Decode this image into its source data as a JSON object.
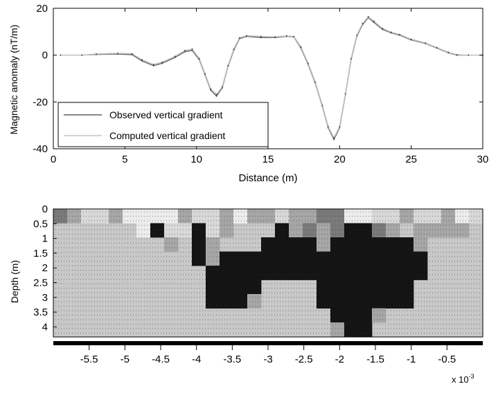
{
  "chart_data": [
    {
      "type": "line",
      "xlabel": "Distance (m)",
      "ylabel": "Magnetic anomaly (nT/m)",
      "xlim": [
        0,
        30
      ],
      "ylim": [
        -40,
        20
      ],
      "xticks": [
        0,
        5,
        10,
        15,
        20,
        25,
        30
      ],
      "yticks": [
        20,
        0,
        -20,
        -40
      ],
      "grid": false,
      "legend_position": "bottom-left",
      "series": [
        {
          "name": "Observed vertical gradient",
          "color": "#606060",
          "points": [
            [
              0.5,
              0
            ],
            [
              2,
              0
            ],
            [
              3,
              0.3
            ],
            [
              4.5,
              0.5
            ],
            [
              5.5,
              0.2
            ],
            [
              6.2,
              -2.5
            ],
            [
              7,
              -4.5
            ],
            [
              7.6,
              -3.5
            ],
            [
              8.5,
              -1
            ],
            [
              9.2,
              1.5
            ],
            [
              9.7,
              2
            ],
            [
              10.2,
              -2
            ],
            [
              10.6,
              -8.5
            ],
            [
              11,
              -15
            ],
            [
              11.4,
              -17.5
            ],
            [
              11.8,
              -14
            ],
            [
              12.2,
              -5
            ],
            [
              12.6,
              2
            ],
            [
              13,
              7
            ],
            [
              13.5,
              8
            ],
            [
              14.5,
              7.5
            ],
            [
              15.5,
              7.5
            ],
            [
              16.3,
              8
            ],
            [
              16.8,
              7.8
            ],
            [
              17.3,
              3
            ],
            [
              17.8,
              -4
            ],
            [
              18.3,
              -12
            ],
            [
              18.8,
              -22
            ],
            [
              19.2,
              -31
            ],
            [
              19.6,
              -36
            ],
            [
              20,
              -31
            ],
            [
              20.4,
              -17
            ],
            [
              20.8,
              -2
            ],
            [
              21.2,
              8
            ],
            [
              21.6,
              13
            ],
            [
              22,
              16
            ],
            [
              22.4,
              14
            ],
            [
              23,
              11
            ],
            [
              23.6,
              9.5
            ],
            [
              24.2,
              8.5
            ],
            [
              25,
              6.5
            ],
            [
              26,
              5
            ],
            [
              26.8,
              3
            ],
            [
              27.6,
              1
            ],
            [
              28.2,
              0
            ],
            [
              29,
              0
            ],
            [
              30,
              0
            ]
          ]
        },
        {
          "name": "Computed vertical gradient",
          "color": "#c4c4c4",
          "points": [
            [
              0.5,
              0
            ],
            [
              2,
              0
            ],
            [
              3,
              0.5
            ],
            [
              4.5,
              0.8
            ],
            [
              5.5,
              0.6
            ],
            [
              6.2,
              -2
            ],
            [
              7,
              -4
            ],
            [
              7.6,
              -3
            ],
            [
              8.5,
              -0.5
            ],
            [
              9.2,
              2
            ],
            [
              9.7,
              2.6
            ],
            [
              10.2,
              -1.5
            ],
            [
              10.6,
              -8
            ],
            [
              11,
              -14.5
            ],
            [
              11.4,
              -16.8
            ],
            [
              11.8,
              -13.5
            ],
            [
              12.2,
              -4.5
            ],
            [
              12.6,
              2.5
            ],
            [
              13,
              7.4
            ],
            [
              13.5,
              8.3
            ],
            [
              14.5,
              8
            ],
            [
              15.5,
              7.8
            ],
            [
              16.3,
              8.2
            ],
            [
              16.8,
              8
            ],
            [
              17.3,
              3.5
            ],
            [
              17.8,
              -3.5
            ],
            [
              18.3,
              -11.5
            ],
            [
              18.8,
              -21.5
            ],
            [
              19.2,
              -30.5
            ],
            [
              19.6,
              -35.3
            ],
            [
              20,
              -30.5
            ],
            [
              20.4,
              -16.5
            ],
            [
              20.8,
              -1.5
            ],
            [
              21.2,
              8.5
            ],
            [
              21.6,
              13.5
            ],
            [
              22,
              16.4
            ],
            [
              22.4,
              14.5
            ],
            [
              23,
              11.4
            ],
            [
              23.6,
              9.8
            ],
            [
              24.2,
              8.8
            ],
            [
              25,
              6.8
            ],
            [
              26,
              5.2
            ],
            [
              26.8,
              3.2
            ],
            [
              27.6,
              1.2
            ],
            [
              28.2,
              0.2
            ],
            [
              29,
              0
            ],
            [
              30,
              0
            ]
          ]
        }
      ]
    },
    {
      "type": "heatmap",
      "ylabel": "Depth (m)",
      "yticks": [
        "0",
        "0.5",
        "1",
        "1.5",
        "2",
        "2.5",
        "3",
        "3.5",
        "4"
      ],
      "colorbar_ticks": [
        "-5.5",
        "-5",
        "-4.5",
        "-4",
        "-3.5",
        "-3",
        "-2.5",
        "-2",
        "-1.5",
        "-1",
        "-0.5"
      ],
      "colorbar_range": [
        -6,
        0
      ],
      "colorbar_scale_label": "x 10",
      "colorbar_scale_exponent": "-3",
      "grid": {
        "rows": 9,
        "cols": 31,
        "background": 0,
        "palette": [
          "#c8c8c8",
          "#141414",
          "#7a7a7a",
          "#a6a6a6",
          "#ececec",
          "#d8d8d8"
        ],
        "cells": [
          [
            0,
            0,
            2
          ],
          [
            0,
            1,
            3
          ],
          [
            0,
            2,
            5
          ],
          [
            0,
            3,
            5
          ],
          [
            0,
            4,
            3
          ],
          [
            0,
            5,
            4
          ],
          [
            0,
            6,
            4
          ],
          [
            0,
            7,
            4
          ],
          [
            0,
            8,
            4
          ],
          [
            0,
            9,
            3
          ],
          [
            0,
            10,
            5
          ],
          [
            0,
            11,
            5
          ],
          [
            0,
            12,
            3
          ],
          [
            0,
            13,
            4
          ],
          [
            0,
            14,
            3
          ],
          [
            0,
            15,
            3
          ],
          [
            0,
            16,
            5
          ],
          [
            0,
            17,
            3
          ],
          [
            0,
            18,
            3
          ],
          [
            0,
            19,
            2
          ],
          [
            0,
            20,
            2
          ],
          [
            0,
            21,
            4
          ],
          [
            0,
            22,
            4
          ],
          [
            0,
            23,
            5
          ],
          [
            0,
            24,
            5
          ],
          [
            0,
            25,
            3
          ],
          [
            0,
            26,
            5
          ],
          [
            0,
            27,
            5
          ],
          [
            0,
            28,
            3
          ],
          [
            0,
            29,
            4
          ],
          [
            0,
            30,
            5
          ],
          [
            1,
            6,
            4
          ],
          [
            1,
            7,
            1
          ],
          [
            1,
            8,
            5
          ],
          [
            1,
            9,
            5
          ],
          [
            1,
            10,
            1
          ],
          [
            1,
            11,
            5
          ],
          [
            1,
            12,
            3
          ],
          [
            1,
            16,
            1
          ],
          [
            1,
            17,
            3
          ],
          [
            1,
            18,
            2
          ],
          [
            1,
            19,
            3
          ],
          [
            1,
            20,
            2
          ],
          [
            1,
            21,
            1
          ],
          [
            1,
            22,
            1
          ],
          [
            1,
            23,
            2
          ],
          [
            1,
            24,
            3
          ],
          [
            1,
            26,
            3
          ],
          [
            1,
            27,
            3
          ],
          [
            1,
            28,
            3
          ],
          [
            1,
            29,
            3
          ],
          [
            2,
            8,
            3
          ],
          [
            2,
            10,
            1
          ],
          [
            2,
            11,
            3
          ],
          [
            2,
            15,
            1
          ],
          [
            2,
            16,
            1
          ],
          [
            2,
            17,
            1
          ],
          [
            2,
            18,
            1
          ],
          [
            2,
            19,
            3
          ],
          [
            2,
            20,
            1
          ],
          [
            2,
            21,
            1
          ],
          [
            2,
            22,
            1
          ],
          [
            2,
            23,
            1
          ],
          [
            2,
            24,
            1
          ],
          [
            2,
            25,
            1
          ],
          [
            2,
            26,
            3
          ],
          [
            3,
            10,
            1
          ],
          [
            3,
            11,
            3
          ],
          [
            3,
            12,
            1
          ],
          [
            3,
            13,
            1
          ],
          [
            3,
            14,
            1
          ],
          [
            3,
            15,
            1
          ],
          [
            3,
            16,
            1
          ],
          [
            3,
            17,
            1
          ],
          [
            3,
            18,
            1
          ],
          [
            3,
            19,
            1
          ],
          [
            3,
            20,
            1
          ],
          [
            3,
            21,
            1
          ],
          [
            3,
            22,
            1
          ],
          [
            3,
            23,
            1
          ],
          [
            3,
            24,
            1
          ],
          [
            3,
            25,
            1
          ],
          [
            3,
            26,
            1
          ],
          [
            4,
            11,
            1
          ],
          [
            4,
            12,
            1
          ],
          [
            4,
            13,
            1
          ],
          [
            4,
            14,
            1
          ],
          [
            4,
            15,
            1
          ],
          [
            4,
            16,
            1
          ],
          [
            4,
            17,
            1
          ],
          [
            4,
            18,
            1
          ],
          [
            4,
            19,
            1
          ],
          [
            4,
            20,
            1
          ],
          [
            4,
            21,
            1
          ],
          [
            4,
            22,
            1
          ],
          [
            4,
            23,
            1
          ],
          [
            4,
            24,
            1
          ],
          [
            4,
            25,
            1
          ],
          [
            4,
            26,
            1
          ],
          [
            5,
            11,
            1
          ],
          [
            5,
            12,
            1
          ],
          [
            5,
            13,
            1
          ],
          [
            5,
            14,
            1
          ],
          [
            5,
            19,
            1
          ],
          [
            5,
            20,
            1
          ],
          [
            5,
            21,
            1
          ],
          [
            5,
            22,
            1
          ],
          [
            5,
            23,
            1
          ],
          [
            5,
            24,
            1
          ],
          [
            5,
            25,
            1
          ],
          [
            6,
            11,
            1
          ],
          [
            6,
            12,
            1
          ],
          [
            6,
            13,
            1
          ],
          [
            6,
            14,
            3
          ],
          [
            6,
            19,
            1
          ],
          [
            6,
            20,
            1
          ],
          [
            6,
            21,
            1
          ],
          [
            6,
            22,
            1
          ],
          [
            6,
            23,
            1
          ],
          [
            6,
            24,
            1
          ],
          [
            6,
            25,
            1
          ],
          [
            7,
            20,
            1
          ],
          [
            7,
            21,
            1
          ],
          [
            7,
            22,
            1
          ],
          [
            7,
            23,
            3
          ],
          [
            8,
            20,
            3
          ],
          [
            8,
            21,
            1
          ],
          [
            8,
            22,
            1
          ]
        ]
      }
    }
  ]
}
